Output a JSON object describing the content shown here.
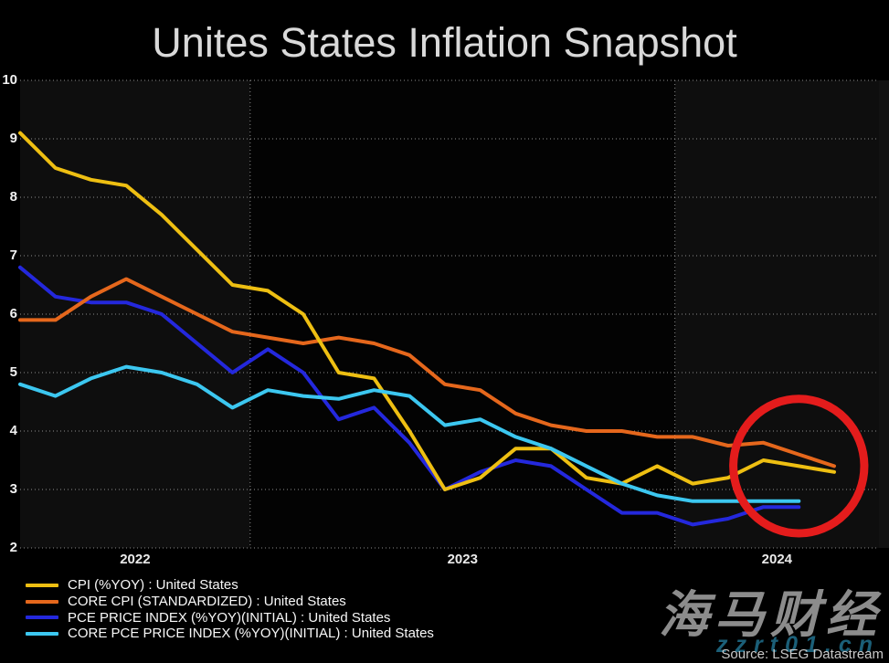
{
  "title": "Unites States Inflation Snapshot",
  "source_note": "Source: LSEG Datastream",
  "watermark": {
    "brand": "海马财经",
    "url": "zzrt01.cn"
  },
  "colors": {
    "background": "#000000",
    "band_light": "#0e0e0e",
    "band_dark": "#030303",
    "right_margin_band": "#121212",
    "gridline": "#8c8c8c",
    "title_text": "#d9d9d9",
    "axis_text": "#f2f2f2",
    "legend_text": "#f8f8f8",
    "highlight_circle": "#e41c1c"
  },
  "chart_data": {
    "type": "line",
    "title": "Unites States Inflation Snapshot",
    "xlabel": "",
    "ylabel": "",
    "ylim": [
      2,
      10
    ],
    "y_ticks": [
      10,
      9,
      8,
      7,
      6,
      5,
      4,
      3,
      2
    ],
    "x_tick_labels": [
      "2022",
      "2023",
      "2024"
    ],
    "grid": "dotted horizontal lines at each integer, dotted vertical lines at year boundaries, alternating year background bands",
    "legend_position": "bottom-left",
    "x_months": [
      "Jun 2022",
      "Jul 2022",
      "Aug 2022",
      "Sep 2022",
      "Oct 2022",
      "Nov 2022",
      "Dec 2022",
      "Jan 2023",
      "Feb 2023",
      "Mar 2023",
      "Apr 2023",
      "May 2023",
      "Jun 2023",
      "Jul 2023",
      "Aug 2023",
      "Sep 2023",
      "Oct 2023",
      "Nov 2023",
      "Dec 2023",
      "Jan 2024",
      "Feb 2024",
      "Mar 2024",
      "Apr 2024",
      "May 2024"
    ],
    "series": [
      {
        "name": "CPI (%YOY) : United States",
        "color": "#eebf12",
        "values": [
          9.1,
          8.5,
          8.3,
          8.2,
          7.7,
          7.1,
          6.5,
          6.4,
          6.0,
          5.0,
          4.9,
          4.0,
          3.0,
          3.2,
          3.7,
          3.7,
          3.2,
          3.1,
          3.4,
          3.1,
          3.2,
          3.5,
          3.4,
          3.3
        ]
      },
      {
        "name": "CORE CPI (STANDARDIZED) : United States",
        "color": "#e5671c",
        "values": [
          5.9,
          5.9,
          6.3,
          6.6,
          6.3,
          6.0,
          5.7,
          5.6,
          5.5,
          5.6,
          5.5,
          5.3,
          4.8,
          4.7,
          4.3,
          4.1,
          4.0,
          4.0,
          3.9,
          3.9,
          3.75,
          3.8,
          3.6,
          3.4
        ]
      },
      {
        "name": "PCE PRICE INDEX (%YOY)(INITIAL) : United States",
        "color": "#2428dd",
        "values": [
          6.8,
          6.3,
          6.2,
          6.2,
          6.0,
          5.5,
          5.0,
          5.4,
          5.0,
          4.2,
          4.4,
          3.8,
          3.0,
          3.3,
          3.5,
          3.4,
          3.0,
          2.6,
          2.6,
          2.4,
          2.5,
          2.7,
          2.7
        ]
      },
      {
        "name": "CORE PCE PRICE INDEX (%YOY)(INITIAL) : United States",
        "color": "#3cc7f0",
        "values": [
          4.8,
          4.6,
          4.9,
          5.1,
          5.0,
          4.8,
          4.4,
          4.7,
          4.6,
          4.55,
          4.7,
          4.6,
          4.1,
          4.2,
          3.9,
          3.7,
          3.4,
          3.1,
          2.9,
          2.8,
          2.8,
          2.8,
          2.8
        ]
      }
    ],
    "annotation": {
      "shape": "ellipse",
      "purpose": "red circle highlighting the latest 2024 readings",
      "center_month_index": 22,
      "center_value": 3.4,
      "radius_months": 1.85,
      "radius_value": 1.15,
      "color": "#e41c1c",
      "stroke_width": 9
    }
  }
}
